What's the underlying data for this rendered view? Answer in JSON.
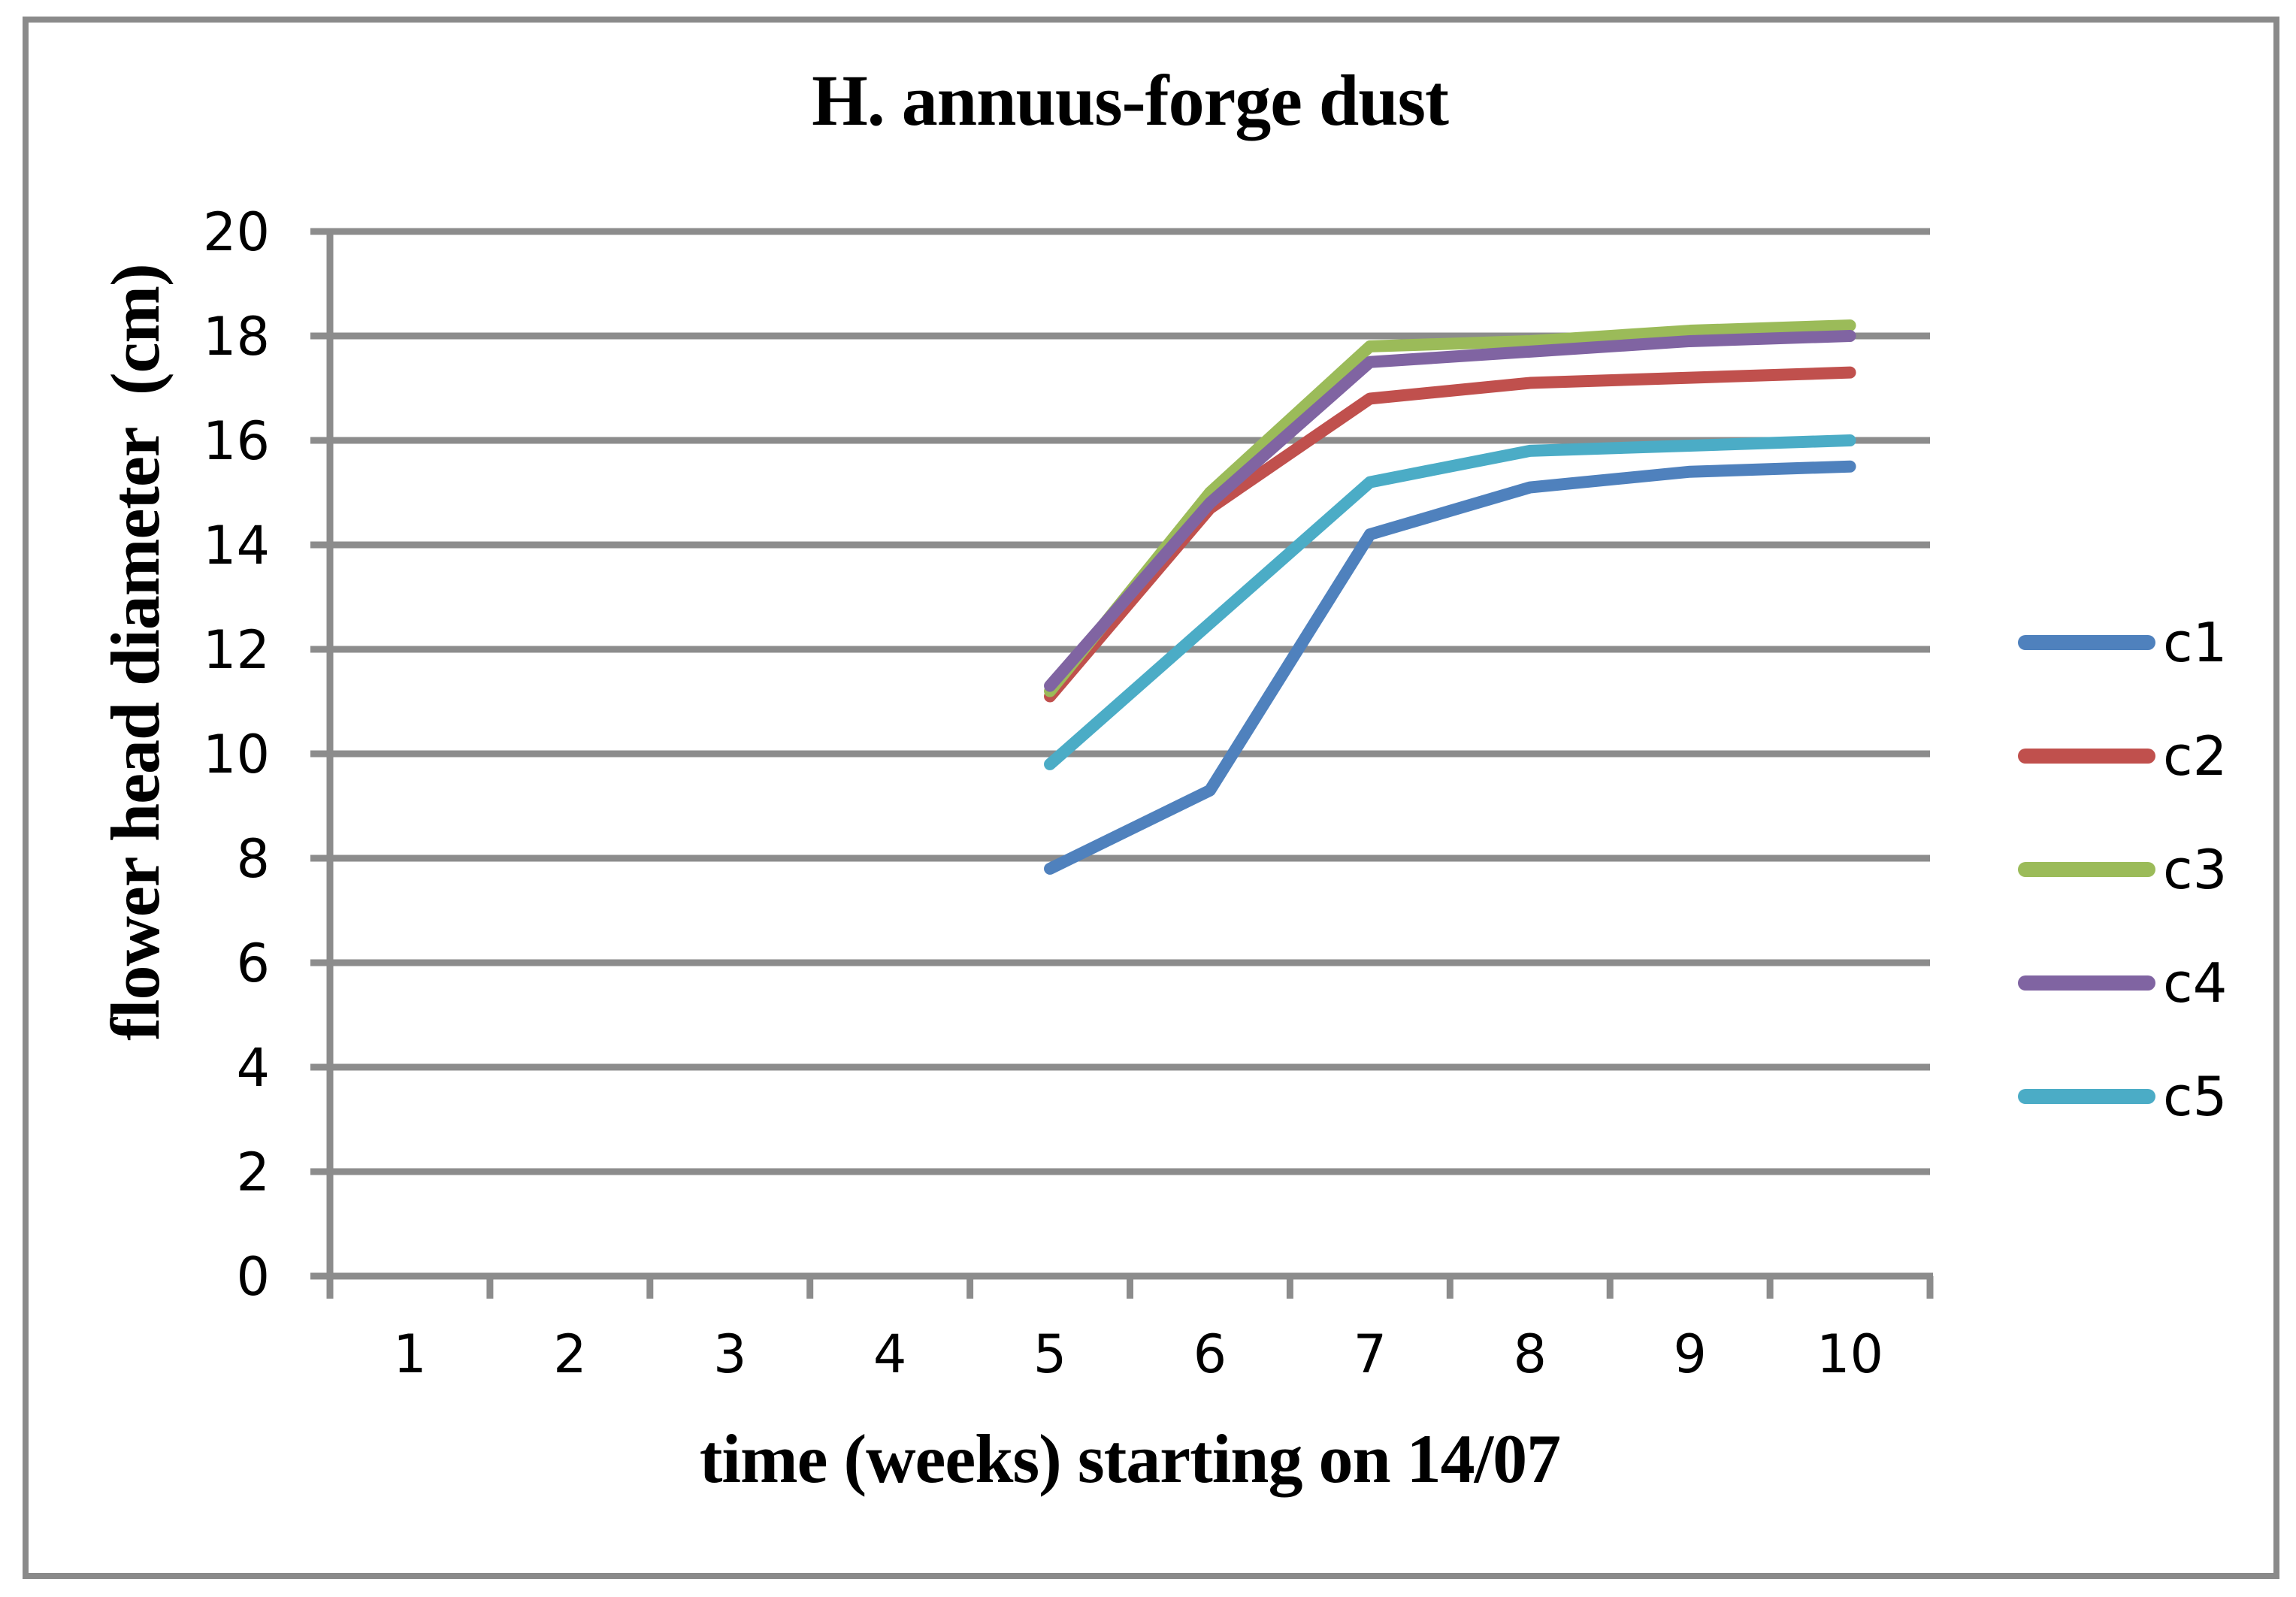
{
  "window": {
    "background": "#ffffff",
    "frame_border_color": "#8a8a8a"
  },
  "chart_data": {
    "type": "line",
    "title": "H. annuus-forge dust",
    "xlabel": "time (weeks) starting on 14/07",
    "ylabel": "flower head diameter  (cm)",
    "x_tick_labels": [
      "1",
      "2",
      "3",
      "4",
      "5",
      "6",
      "7",
      "8",
      "9",
      "10"
    ],
    "y_tick_labels": [
      "0",
      "2",
      "4",
      "6",
      "8",
      "10",
      "12",
      "14",
      "16",
      "18",
      "20"
    ],
    "ylim": [
      0,
      20
    ],
    "y_tick_step": 2,
    "x_categories": 10,
    "grid": true,
    "legend_position": "right",
    "grid_color": "#8C8C8C",
    "axis_color": "#8C8C8C",
    "text_color": "#000000",
    "x": [
      5,
      6,
      7,
      8,
      9,
      10
    ],
    "series": [
      {
        "name": "c1",
        "color": "#4F81BD",
        "values": [
          7.8,
          9.3,
          14.2,
          15.1,
          15.4,
          15.5
        ]
      },
      {
        "name": "c2",
        "color": "#C0504D",
        "values": [
          11.1,
          14.7,
          16.8,
          17.1,
          17.2,
          17.3
        ]
      },
      {
        "name": "c3",
        "color": "#9BBB59",
        "values": [
          11.2,
          15.0,
          17.8,
          17.9,
          18.1,
          18.2
        ]
      },
      {
        "name": "c4",
        "color": "#8064A2",
        "values": [
          11.3,
          14.8,
          17.5,
          17.7,
          17.9,
          18.0
        ]
      },
      {
        "name": "c5",
        "color": "#4BACC6",
        "values": [
          9.8,
          12.5,
          15.2,
          15.8,
          15.9,
          16.0
        ]
      }
    ]
  }
}
